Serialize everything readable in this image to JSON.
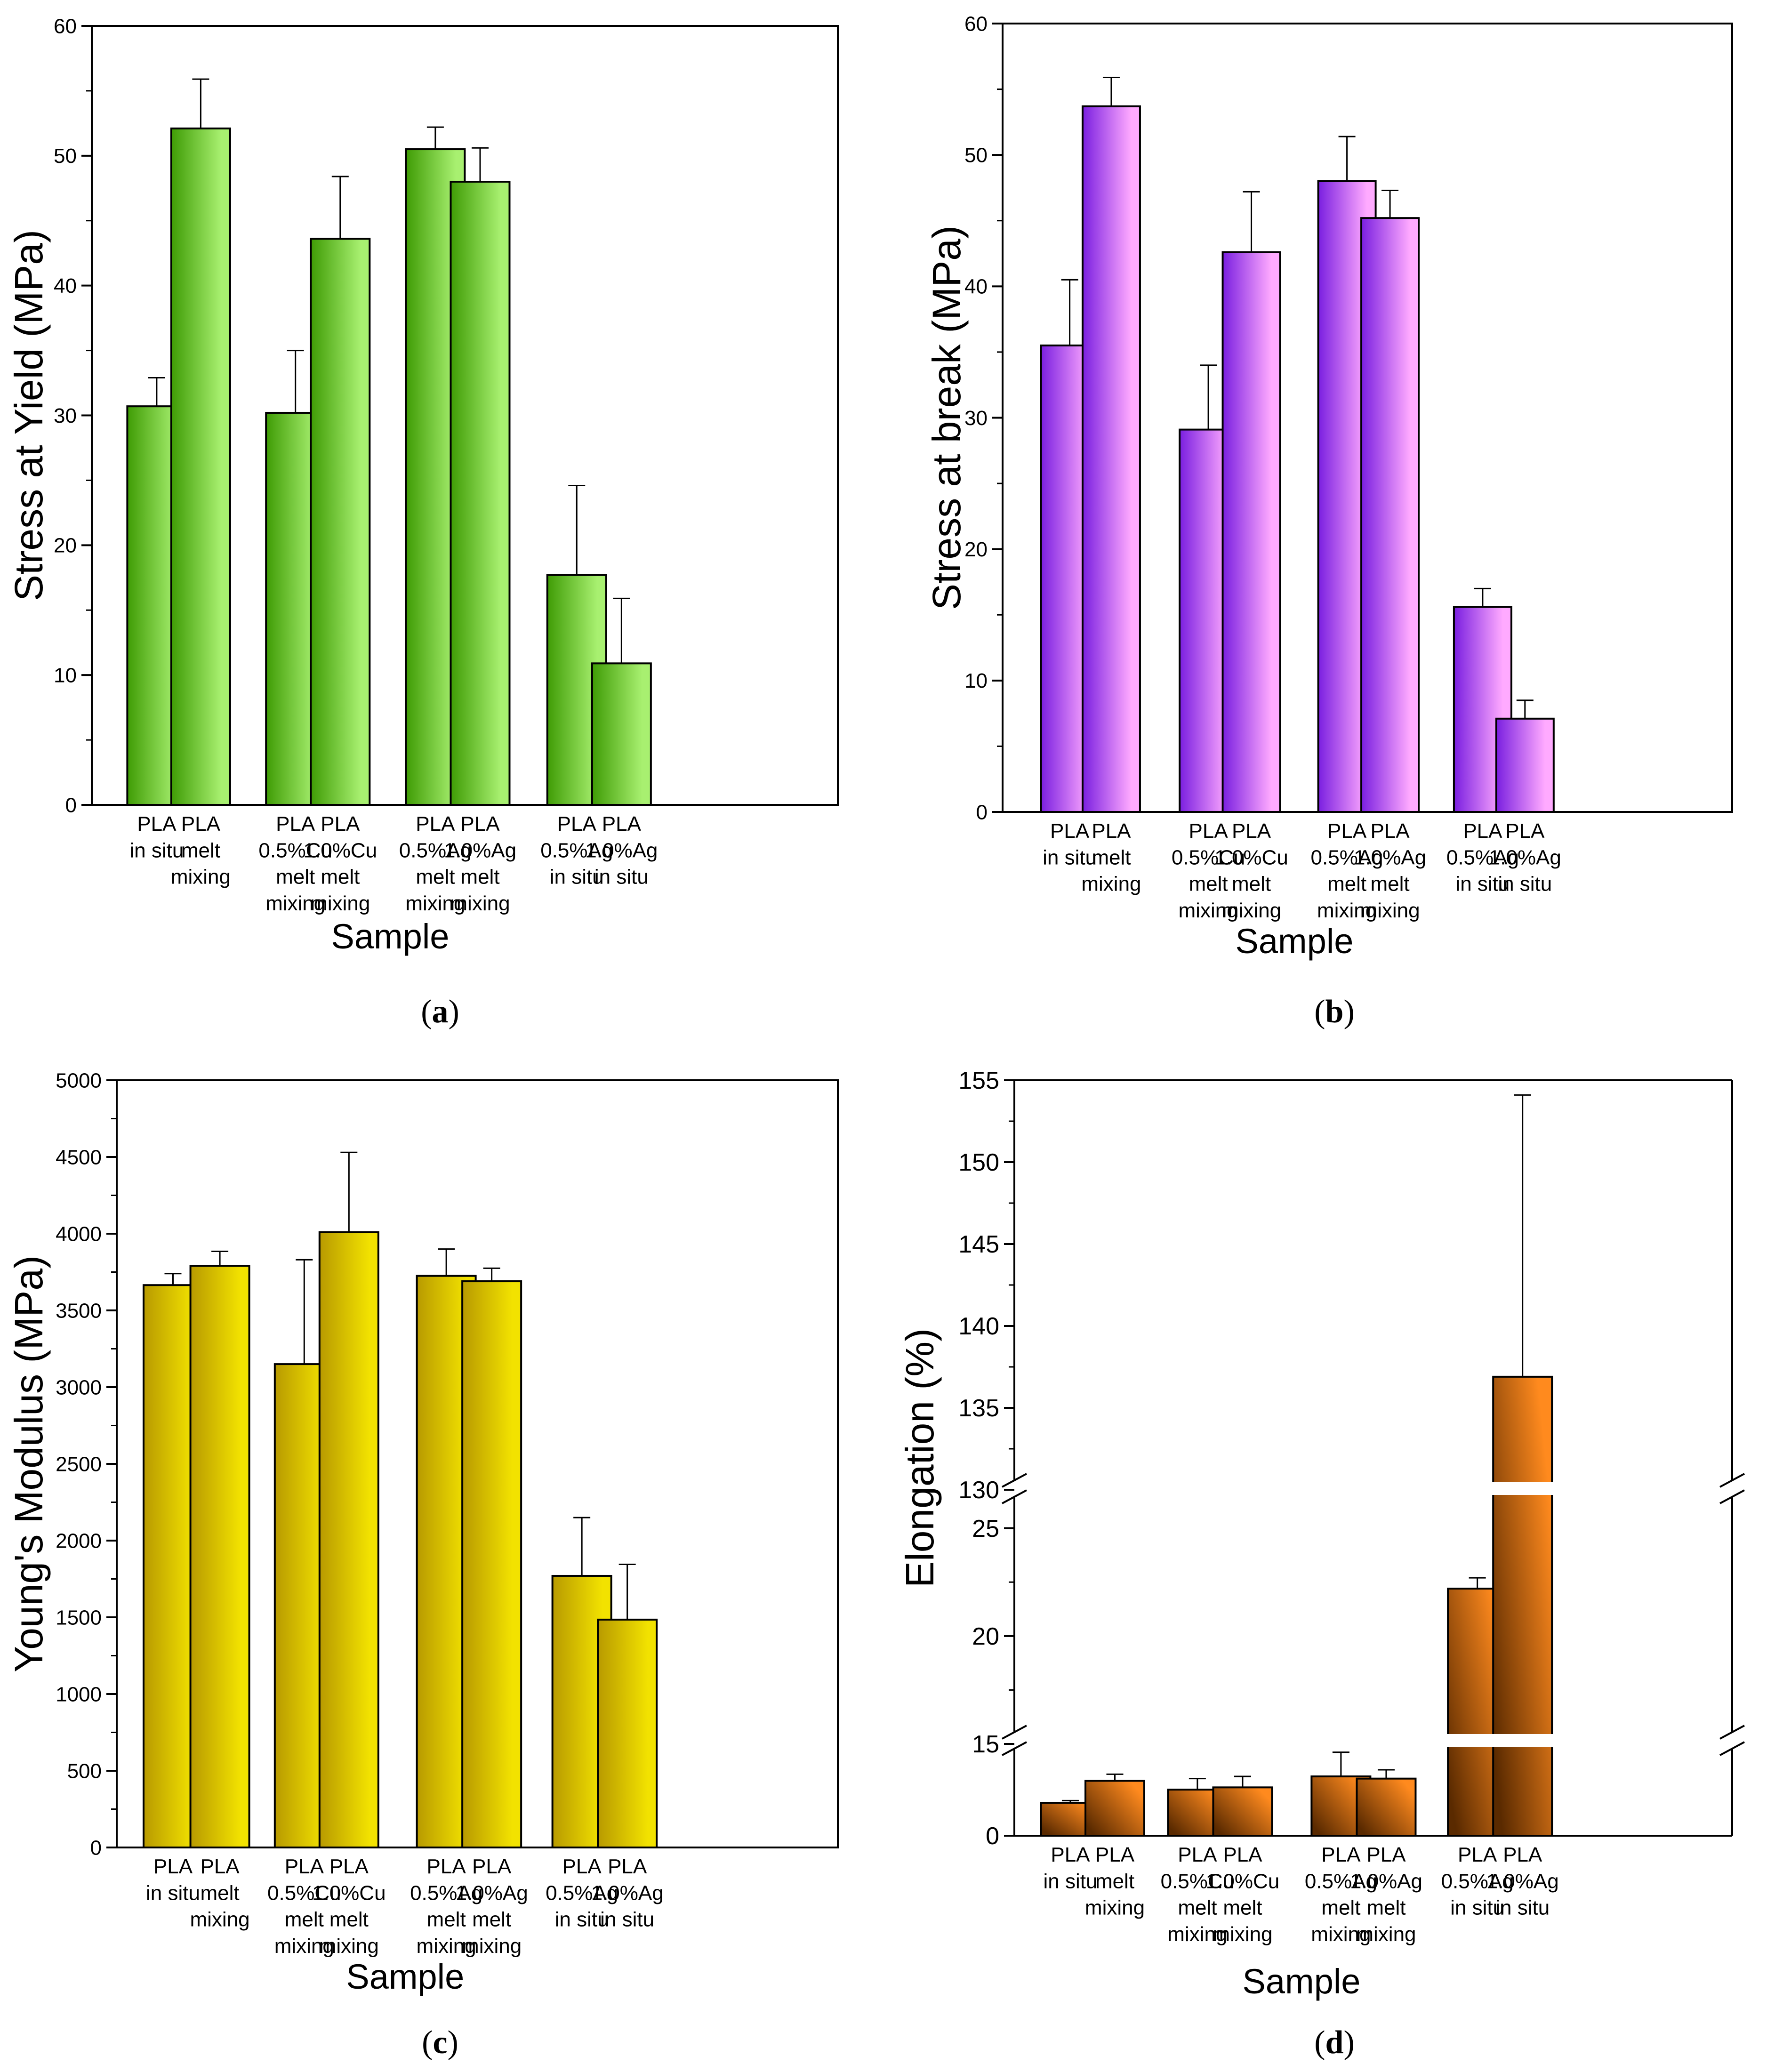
{
  "chart_data": [
    {
      "id": "a",
      "type": "bar",
      "caption_letter": "a",
      "title": "",
      "xlabel": "Sample",
      "ylabel": "Stress at Yield (MPa)",
      "ylim": [
        0,
        60
      ],
      "yticks": [
        0,
        10,
        20,
        30,
        40,
        50,
        60
      ],
      "groups": [
        {
          "categories": [
            [
              "PLA",
              "in situ"
            ],
            [
              "PLA",
              "melt",
              "mixing"
            ]
          ],
          "values": [
            30.7,
            52.1
          ],
          "errors": [
            2.2,
            3.8
          ]
        },
        {
          "categories": [
            [
              "PLA",
              "0.5%Cu",
              "melt",
              "mixing"
            ],
            [
              "PLA",
              "1.0%Cu",
              "melt",
              "mixing"
            ]
          ],
          "values": [
            30.2,
            43.6
          ],
          "errors": [
            4.8,
            4.8
          ]
        },
        {
          "categories": [
            [
              "PLA",
              "0.5%Ag",
              "melt",
              "mixing"
            ],
            [
              "PLA",
              "1.0%Ag",
              "melt",
              "mixing"
            ]
          ],
          "values": [
            50.5,
            48.0
          ],
          "errors": [
            1.7,
            2.6
          ]
        },
        {
          "categories": [
            [
              "PLA",
              "0.5%Ag",
              "in situ"
            ],
            [
              "PLA",
              "1.0%Ag",
              "in situ"
            ]
          ],
          "values": [
            17.7,
            10.9
          ],
          "errors": [
            6.9,
            5.0
          ]
        }
      ],
      "colors": {
        "light": "#a8f070",
        "dark": "#3f9c05"
      }
    },
    {
      "id": "b",
      "type": "bar",
      "caption_letter": "b",
      "title": "",
      "xlabel": "Sample",
      "ylabel": "Stress at break (MPa)",
      "ylim": [
        0,
        60
      ],
      "yticks": [
        0,
        10,
        20,
        30,
        40,
        50,
        60
      ],
      "groups": [
        {
          "categories": [
            [
              "PLA",
              "in situ"
            ],
            [
              "PLA",
              "melt",
              "mixing"
            ]
          ],
          "values": [
            35.5,
            53.7
          ],
          "errors": [
            5.0,
            2.2
          ]
        },
        {
          "categories": [
            [
              "PLA",
              "0.5%Cu",
              "melt",
              "mixing"
            ],
            [
              "PLA",
              "1.0%Cu",
              "melt",
              "mixing"
            ]
          ],
          "values": [
            29.1,
            42.6
          ],
          "errors": [
            4.9,
            4.6
          ]
        },
        {
          "categories": [
            [
              "PLA",
              "0.5%Ag",
              "melt",
              "mixing"
            ],
            [
              "PLA",
              "1.0%Ag",
              "melt",
              "mixing"
            ]
          ],
          "values": [
            48.0,
            45.2
          ],
          "errors": [
            3.4,
            2.1
          ]
        },
        {
          "categories": [
            [
              "PLA",
              "0.5%Ag",
              "in situ"
            ],
            [
              "PLA",
              "1.0%Ag",
              "in situ"
            ]
          ],
          "values": [
            15.6,
            7.1
          ],
          "errors": [
            1.4,
            1.4
          ]
        }
      ],
      "colors": {
        "light": "#ffaaff",
        "dark": "#7a1fe0"
      }
    },
    {
      "id": "c",
      "type": "bar",
      "caption_letter": "c",
      "title": "",
      "xlabel": "Sample",
      "ylabel": "Young's Modulus (MPa)",
      "ylim": [
        0,
        5000
      ],
      "yticks": [
        0,
        500,
        1000,
        1500,
        2000,
        2500,
        3000,
        3500,
        4000,
        4500,
        5000
      ],
      "groups": [
        {
          "categories": [
            [
              "PLA",
              "in situ"
            ],
            [
              "PLA",
              "melt",
              "mixing"
            ]
          ],
          "values": [
            3665,
            3790
          ],
          "errors": [
            75,
            95
          ]
        },
        {
          "categories": [
            [
              "PLA",
              "0.5%Cu",
              "melt",
              "mixing"
            ],
            [
              "PLA",
              "1.0%Cu",
              "melt",
              "mixing"
            ]
          ],
          "values": [
            3150,
            4010
          ],
          "errors": [
            680,
            520
          ]
        },
        {
          "categories": [
            [
              "PLA",
              "0.5%Ag",
              "melt",
              "mixing"
            ],
            [
              "PLA",
              "1.0%Ag",
              "melt",
              "mixing"
            ]
          ],
          "values": [
            3725,
            3690
          ],
          "errors": [
            175,
            85
          ]
        },
        {
          "categories": [
            [
              "PLA",
              "0.5%Ag",
              "in situ"
            ],
            [
              "PLA",
              "1.0%Ag",
              "in situ"
            ]
          ],
          "values": [
            1770,
            1485
          ],
          "errors": [
            380,
            360
          ]
        }
      ],
      "colors": {
        "light": "#f2e200",
        "dark": "#b89a00"
      }
    },
    {
      "id": "d",
      "type": "bar",
      "caption_letter": "d",
      "title": "",
      "xlabel": "Sample",
      "ylabel": "Elongation (%)",
      "broken_axis": true,
      "segments": [
        {
          "range": [
            0,
            4.5
          ],
          "ticks": [
            0
          ]
        },
        {
          "range": [
            15,
            27
          ],
          "ticks": [
            15,
            20,
            25
          ]
        },
        {
          "range": [
            130,
            155
          ],
          "ticks": [
            130,
            135,
            140,
            145,
            150,
            155
          ]
        }
      ],
      "groups": [
        {
          "categories": [
            [
              "PLA",
              "in situ"
            ],
            [
              "PLA",
              "melt",
              "mixing"
            ]
          ],
          "values": [
            1.5,
            2.5
          ],
          "errors": [
            0.1,
            0.3
          ]
        },
        {
          "categories": [
            [
              "PLA",
              "0.5%Cu",
              "melt",
              "mixing"
            ],
            [
              "PLA",
              "1.0%Cu",
              "melt",
              "mixing"
            ]
          ],
          "values": [
            2.1,
            2.2
          ],
          "errors": [
            0.5,
            0.5
          ]
        },
        {
          "categories": [
            [
              "PLA",
              "0.5%Ag",
              "melt",
              "mixing"
            ],
            [
              "PLA",
              "1.0%Ag",
              "melt",
              "mixing"
            ]
          ],
          "values": [
            2.7,
            2.6
          ],
          "errors": [
            1.1,
            0.4
          ]
        },
        {
          "categories": [
            [
              "PLA",
              "0.5%Ag",
              "in situ"
            ],
            [
              "PLA",
              "1.0%Ag",
              "in situ"
            ]
          ],
          "values": [
            22.2,
            136.9
          ],
          "errors": [
            0.5,
            17.2
          ]
        }
      ],
      "colors": {
        "light": "#ff8a1e",
        "dark": "#5a2a00"
      }
    }
  ]
}
